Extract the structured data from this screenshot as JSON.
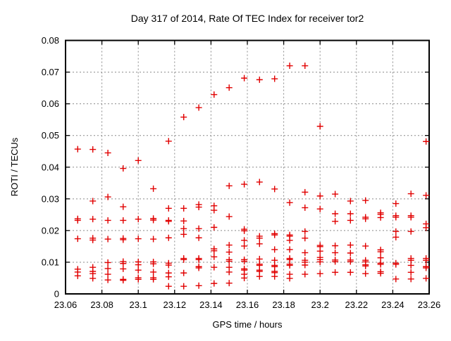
{
  "chart_data": {
    "type": "scatter",
    "title": "Day 317 of 2014, Rate Of TEC Index for receiver tor2",
    "xlabel": "GPS time / hours",
    "ylabel": "ROTI / TECUs",
    "xlim": [
      23.06,
      23.26
    ],
    "ylim": [
      0,
      0.08
    ],
    "xticks": [
      23.06,
      23.08,
      23.1,
      23.12,
      23.14,
      23.16,
      23.18,
      23.2,
      23.22,
      23.24,
      23.26
    ],
    "xtick_labels": [
      "23.06",
      "23.08",
      "23.1",
      "23.12",
      "23.14",
      "23.16",
      "23.18",
      "23.2",
      "23.22",
      "23.24",
      "23.26"
    ],
    "yticks": [
      0,
      0.01,
      0.02,
      0.03,
      0.04,
      0.05,
      0.06,
      0.07,
      0.08
    ],
    "ytick_labels": [
      "0",
      "0.01",
      "0.02",
      "0.03",
      "0.04",
      "0.05",
      "0.06",
      "0.07",
      "0.08"
    ],
    "grid": true,
    "legend": "none",
    "marker": "plus-cross",
    "marker_color": "#e10000",
    "grid_color": "#8a8a8a",
    "border_color": "#000000",
    "epochs": [
      {
        "t": 23.0667,
        "roti": [
          0.0457,
          0.0237,
          0.0232,
          0.0174,
          0.0078,
          0.0069,
          0.0057
        ]
      },
      {
        "t": 23.075,
        "roti": [
          0.0456,
          0.0293,
          0.0236,
          0.0176,
          0.017,
          0.0084,
          0.0071,
          0.0064,
          0.0049
        ]
      },
      {
        "t": 23.0833,
        "roti": [
          0.0445,
          0.0306,
          0.0232,
          0.0173,
          0.0099,
          0.008,
          0.0062,
          0.0044
        ]
      },
      {
        "t": 23.0917,
        "roti": [
          0.0396,
          0.0275,
          0.0232,
          0.0175,
          0.0171,
          0.0102,
          0.0096,
          0.0079,
          0.0046,
          0.0043
        ]
      },
      {
        "t": 23.1,
        "roti": [
          0.0421,
          0.0236,
          0.0174,
          0.0101,
          0.0092,
          0.0075,
          0.0051,
          0.0046
        ]
      },
      {
        "t": 23.1083,
        "roti": [
          0.0332,
          0.0238,
          0.0233,
          0.0173,
          0.0101,
          0.0095,
          0.0069,
          0.0051,
          0.0046
        ]
      },
      {
        "t": 23.1167,
        "roti": [
          0.0482,
          0.027,
          0.0232,
          0.0229,
          0.0177,
          0.0097,
          0.0091,
          0.0066,
          0.0054,
          0.0024
        ]
      },
      {
        "t": 23.125,
        "roti": [
          0.0558,
          0.027,
          0.023,
          0.0206,
          0.0188,
          0.0112,
          0.0108,
          0.0066,
          0.0024
        ]
      },
      {
        "t": 23.1333,
        "roti": [
          0.0588,
          0.0282,
          0.0274,
          0.0206,
          0.0177,
          0.0112,
          0.0108,
          0.0086,
          0.0082,
          0.0026
        ]
      },
      {
        "t": 23.1417,
        "roti": [
          0.0629,
          0.0278,
          0.0264,
          0.021,
          0.0142,
          0.0136,
          0.0117,
          0.0084,
          0.0033
        ]
      },
      {
        "t": 23.15,
        "roti": [
          0.0651,
          0.0341,
          0.0244,
          0.0154,
          0.0132,
          0.0108,
          0.0103,
          0.0084,
          0.0069,
          0.0034
        ]
      },
      {
        "t": 23.1583,
        "roti": [
          0.0681,
          0.0346,
          0.0204,
          0.0199,
          0.0169,
          0.0151,
          0.0108,
          0.0103,
          0.0079,
          0.0075,
          0.0062,
          0.005
        ]
      },
      {
        "t": 23.1667,
        "roti": [
          0.0676,
          0.0353,
          0.0182,
          0.0176,
          0.0158,
          0.011,
          0.0094,
          0.009,
          0.0075,
          0.0071,
          0.0055
        ]
      },
      {
        "t": 23.175,
        "roti": [
          0.0679,
          0.0331,
          0.019,
          0.0186,
          0.014,
          0.0106,
          0.009,
          0.0086,
          0.0071,
          0.0067,
          0.0055
        ]
      },
      {
        "t": 23.1833,
        "roti": [
          0.072,
          0.0288,
          0.0186,
          0.0182,
          0.0169,
          0.014,
          0.0112,
          0.0108,
          0.0094,
          0.009,
          0.0062,
          0.0049
        ]
      },
      {
        "t": 23.1917,
        "roti": [
          0.072,
          0.0321,
          0.0272,
          0.0197,
          0.0176,
          0.013,
          0.0106,
          0.01,
          0.0091,
          0.0062
        ]
      },
      {
        "t": 23.2,
        "roti": [
          0.0529,
          0.0309,
          0.0268,
          0.0153,
          0.0149,
          0.0135,
          0.0115,
          0.0108,
          0.0101,
          0.0064
        ]
      },
      {
        "t": 23.2083,
        "roti": [
          0.0315,
          0.0253,
          0.0229,
          0.0152,
          0.013,
          0.0107,
          0.0102,
          0.0068
        ]
      },
      {
        "t": 23.2167,
        "roti": [
          0.0293,
          0.0253,
          0.0232,
          0.0154,
          0.0129,
          0.0107,
          0.0102,
          0.0068
        ]
      },
      {
        "t": 23.225,
        "roti": [
          0.0295,
          0.0242,
          0.0237,
          0.0151,
          0.0106,
          0.0101,
          0.0092,
          0.0088,
          0.0064
        ]
      },
      {
        "t": 23.2333,
        "roti": [
          0.0256,
          0.0251,
          0.0241,
          0.0139,
          0.0133,
          0.0114,
          0.0097,
          0.0093,
          0.007,
          0.0065
        ]
      },
      {
        "t": 23.2417,
        "roti": [
          0.0285,
          0.0247,
          0.0242,
          0.0197,
          0.0179,
          0.0097,
          0.0093,
          0.0047
        ]
      },
      {
        "t": 23.25,
        "roti": [
          0.0316,
          0.0247,
          0.0242,
          0.0197,
          0.0112,
          0.0106,
          0.009,
          0.0068,
          0.0047
        ]
      },
      {
        "t": 23.2583,
        "roti": [
          0.0481,
          0.0311,
          0.0221,
          0.0209,
          0.0112,
          0.0106,
          0.0086,
          0.0082,
          0.0049
        ]
      }
    ]
  }
}
